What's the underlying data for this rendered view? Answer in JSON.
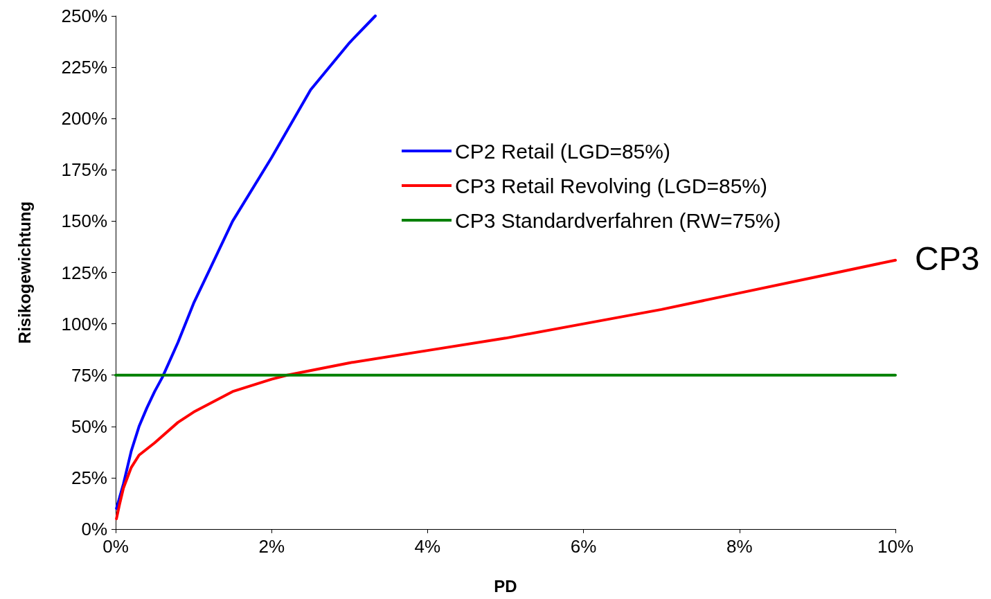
{
  "chart_data": {
    "type": "line",
    "xlabel": "PD",
    "ylabel": "Risikogewichtung",
    "xlim": [
      0,
      10
    ],
    "ylim": [
      0,
      250
    ],
    "xticks": [
      {
        "value": 0,
        "label": "0%"
      },
      {
        "value": 2,
        "label": "2%"
      },
      {
        "value": 4,
        "label": "4%"
      },
      {
        "value": 6,
        "label": "6%"
      },
      {
        "value": 8,
        "label": "8%"
      },
      {
        "value": 10,
        "label": "10%"
      }
    ],
    "yticks": [
      {
        "value": 0,
        "label": "0%"
      },
      {
        "value": 25,
        "label": "25%"
      },
      {
        "value": 50,
        "label": "50%"
      },
      {
        "value": 75,
        "label": "75%"
      },
      {
        "value": 100,
        "label": "100%"
      },
      {
        "value": 125,
        "label": "125%"
      },
      {
        "value": 150,
        "label": "150%"
      },
      {
        "value": 175,
        "label": "175%"
      },
      {
        "value": 200,
        "label": "200%"
      },
      {
        "value": 225,
        "label": "225%"
      },
      {
        "value": 250,
        "label": "250%"
      }
    ],
    "series": [
      {
        "name": "CP2 Retail (LGD=85%)",
        "color": "#0000ff",
        "x": [
          0.01,
          0.1,
          0.2,
          0.3,
          0.4,
          0.5,
          0.6,
          0.8,
          1.0,
          1.2,
          1.5,
          2.0,
          2.5,
          3.0,
          3.33
        ],
        "values": [
          10,
          22,
          38,
          50,
          59,
          67,
          74,
          91,
          110,
          126,
          150,
          181,
          214,
          237,
          250
        ]
      },
      {
        "name": "CP3 Retail Revolving (LGD=85%)",
        "color": "#ff0000",
        "x": [
          0.01,
          0.05,
          0.1,
          0.2,
          0.3,
          0.5,
          0.8,
          1.0,
          1.5,
          2.0,
          2.2,
          3,
          4,
          5,
          6,
          7,
          8,
          9,
          10
        ],
        "values": [
          5,
          12,
          20,
          30,
          36,
          42,
          52,
          57,
          67,
          73,
          75,
          81,
          87,
          93,
          100,
          107,
          115,
          123,
          131
        ]
      },
      {
        "name": "CP3 Standardverfahren (RW=75%)",
        "color": "#008000",
        "x": [
          0,
          10
        ],
        "values": [
          75,
          75
        ]
      }
    ],
    "annotations": [
      {
        "text": "CP3",
        "x": 10,
        "y": 131
      }
    ],
    "legend": "top right",
    "grid": false,
    "marker": "none",
    "line_style": "solid"
  }
}
